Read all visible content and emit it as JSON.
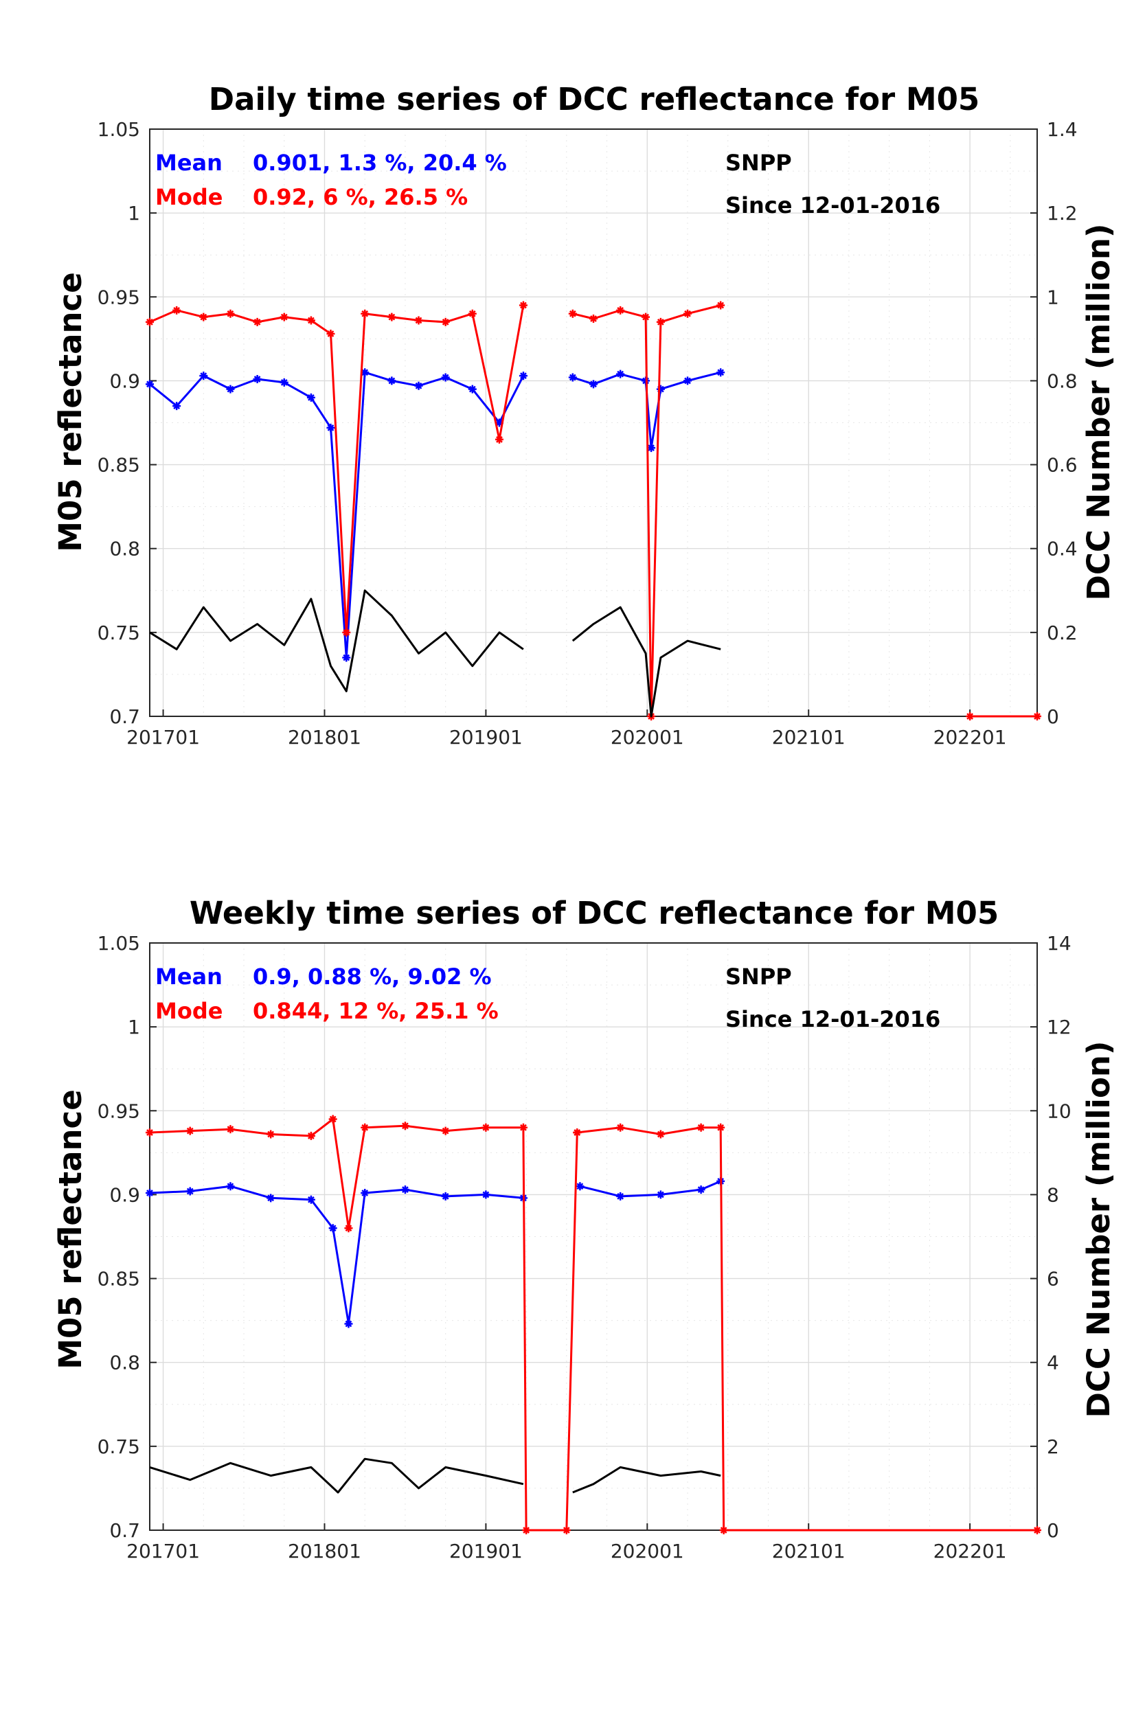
{
  "chart_data": [
    {
      "type": "line",
      "title": "Daily time series of DCC reflectance for M05",
      "ylabel": "M05 reflectance",
      "ylabel_right": "DCC Number (million)",
      "ylim": [
        0.7,
        1.05
      ],
      "ylim_right": [
        0,
        1.4
      ],
      "yticks": [
        "1.05",
        "1",
        "0.95",
        "0.9",
        "0.85",
        "0.8",
        "0.75",
        "0.7"
      ],
      "yticks_right": [
        "1.4",
        "1.2",
        "1",
        "0.8",
        "0.6",
        "0.4",
        "0.2",
        "0"
      ],
      "xticks": [
        "201701",
        "201801",
        "201901",
        "202001",
        "202101",
        "202201"
      ],
      "grid": true,
      "legend": {
        "mean_label": "Mean",
        "mean_stats": "0.901, 1.3 %, 20.4 %",
        "mode_label": "Mode",
        "mode_stats": "0.92, 6 %, 26.5 %",
        "satellite": "SNPP",
        "since": "Since 12-01-2016"
      },
      "colors": {
        "mean": "#0000ff",
        "mode": "#ff0000",
        "count": "#000000"
      },
      "series": [
        {
          "name": "Mean",
          "axis": "left",
          "marker": "star",
          "segments": [
            {
              "x": [
                "2016-12-01",
                "2017-02-01",
                "2017-04-01",
                "2017-06-01",
                "2017-08-01",
                "2017-10-01",
                "2017-12-01",
                "2018-01-15",
                "2018-02-20",
                "2018-04-01",
                "2018-06-01",
                "2018-08-01",
                "2018-10-01",
                "2018-12-01",
                "2019-02-01",
                "2019-03-25"
              ],
              "y": [
                0.898,
                0.885,
                0.903,
                0.895,
                0.901,
                0.899,
                0.89,
                0.872,
                0.735,
                0.905,
                0.9,
                0.897,
                0.902,
                0.895,
                0.875,
                0.903
              ]
            },
            {
              "x": [
                "2019-07-15",
                "2019-09-01",
                "2019-11-01",
                "2019-12-28",
                "2020-01-10",
                "2020-02-01",
                "2020-04-01",
                "2020-06-15"
              ],
              "y": [
                0.902,
                0.898,
                0.904,
                0.9,
                0.86,
                0.895,
                0.9,
                0.905
              ]
            }
          ]
        },
        {
          "name": "Mode",
          "axis": "left",
          "marker": "star",
          "segments": [
            {
              "x": [
                "2016-12-01",
                "2017-02-01",
                "2017-04-01",
                "2017-06-01",
                "2017-08-01",
                "2017-10-01",
                "2017-12-01",
                "2018-01-15",
                "2018-02-20",
                "2018-04-01",
                "2018-06-01",
                "2018-08-01",
                "2018-10-01",
                "2018-12-01",
                "2019-02-01",
                "2019-03-25"
              ],
              "y": [
                0.935,
                0.942,
                0.938,
                0.94,
                0.935,
                0.938,
                0.936,
                0.928,
                0.75,
                0.94,
                0.938,
                0.936,
                0.935,
                0.94,
                0.865,
                0.945
              ]
            },
            {
              "x": [
                "2019-07-15",
                "2019-09-01",
                "2019-11-01",
                "2019-12-28",
                "2020-01-10",
                "2020-02-01",
                "2020-04-01",
                "2020-06-15"
              ],
              "y": [
                0.94,
                0.937,
                0.942,
                0.938,
                0.7,
                0.935,
                0.94,
                0.945
              ]
            },
            {
              "x": [
                "2022-01-01",
                "2022-06-01"
              ],
              "y": [
                0.7,
                0.7
              ]
            }
          ]
        },
        {
          "name": "DCC Number",
          "axis": "right",
          "segments": [
            {
              "x": [
                "2016-12-01",
                "2017-02-01",
                "2017-04-01",
                "2017-06-01",
                "2017-08-01",
                "2017-10-01",
                "2017-12-01",
                "2018-01-15",
                "2018-02-20",
                "2018-04-01",
                "2018-06-01",
                "2018-08-01",
                "2018-10-01",
                "2018-12-01",
                "2019-02-01",
                "2019-03-25"
              ],
              "y": [
                0.2,
                0.16,
                0.26,
                0.18,
                0.22,
                0.17,
                0.28,
                0.12,
                0.06,
                0.3,
                0.24,
                0.15,
                0.2,
                0.12,
                0.2,
                0.16
              ]
            },
            {
              "x": [
                "2019-07-15",
                "2019-09-01",
                "2019-11-01",
                "2019-12-28",
                "2020-01-10",
                "2020-02-01",
                "2020-04-01",
                "2020-06-15"
              ],
              "y": [
                0.18,
                0.22,
                0.26,
                0.15,
                0.0,
                0.14,
                0.18,
                0.16
              ]
            }
          ]
        }
      ]
    },
    {
      "type": "line",
      "title": "Weekly time series of DCC reflectance for M05",
      "ylabel": "M05 reflectance",
      "ylabel_right": "DCC Number (million)",
      "ylim": [
        0.7,
        1.05
      ],
      "ylim_right": [
        0,
        14
      ],
      "yticks": [
        "1.05",
        "1",
        "0.95",
        "0.9",
        "0.85",
        "0.8",
        "0.75",
        "0.7"
      ],
      "yticks_right": [
        "14",
        "12",
        "10",
        "8",
        "6",
        "4",
        "2",
        "0"
      ],
      "xticks": [
        "201701",
        "201801",
        "201901",
        "202001",
        "202101",
        "202201"
      ],
      "grid": true,
      "legend": {
        "mean_label": "Mean",
        "mean_stats": "0.9, 0.88 %, 9.02 %",
        "mode_label": "Mode",
        "mode_stats": "0.844, 12 %, 25.1 %",
        "satellite": "SNPP",
        "since": "Since 12-01-2016"
      },
      "colors": {
        "mean": "#0000ff",
        "mode": "#ff0000",
        "count": "#000000"
      },
      "series": [
        {
          "name": "Mean",
          "axis": "left",
          "marker": "star",
          "segments": [
            {
              "x": [
                "2016-12-01",
                "2017-03-01",
                "2017-06-01",
                "2017-09-01",
                "2017-12-01",
                "2018-01-20",
                "2018-02-25",
                "2018-04-01",
                "2018-07-01",
                "2018-10-01",
                "2019-01-01",
                "2019-03-25"
              ],
              "y": [
                0.901,
                0.902,
                0.905,
                0.898,
                0.897,
                0.88,
                0.823,
                0.901,
                0.903,
                0.899,
                0.9,
                0.898
              ]
            },
            {
              "x": [
                "2019-08-01",
                "2019-11-01",
                "2020-02-01",
                "2020-05-01",
                "2020-06-15"
              ],
              "y": [
                0.905,
                0.899,
                0.9,
                0.903,
                0.908
              ]
            }
          ]
        },
        {
          "name": "Mode",
          "axis": "left",
          "marker": "star",
          "segments": [
            {
              "x": [
                "2016-12-01",
                "2017-03-01",
                "2017-06-01",
                "2017-09-01",
                "2017-12-01",
                "2018-01-20",
                "2018-02-25",
                "2018-04-01",
                "2018-07-01",
                "2018-10-01",
                "2019-01-01",
                "2019-03-25",
                "2019-04-01",
                "2019-07-01",
                "2019-07-25"
              ],
              "y": [
                0.937,
                0.938,
                0.939,
                0.936,
                0.935,
                0.945,
                0.88,
                0.94,
                0.941,
                0.938,
                0.94,
                0.94,
                0.7,
                0.7,
                0.937
              ]
            },
            {
              "x": [
                "2019-07-25",
                "2019-11-01",
                "2020-02-01",
                "2020-05-01",
                "2020-06-15",
                "2020-06-22",
                "2022-06-01"
              ],
              "y": [
                0.937,
                0.94,
                0.936,
                0.94,
                0.94,
                0.7,
                0.7
              ]
            }
          ]
        },
        {
          "name": "DCC Number",
          "axis": "right",
          "segments": [
            {
              "x": [
                "2016-12-01",
                "2017-03-01",
                "2017-06-01",
                "2017-09-01",
                "2017-12-01",
                "2018-02-01",
                "2018-04-01",
                "2018-06-01",
                "2018-08-01",
                "2018-10-01",
                "2019-01-01",
                "2019-03-25"
              ],
              "y": [
                1.5,
                1.2,
                1.6,
                1.3,
                1.5,
                0.9,
                1.7,
                1.6,
                1.0,
                1.5,
                1.3,
                1.1
              ]
            },
            {
              "x": [
                "2019-07-15",
                "2019-09-01",
                "2019-11-01",
                "2020-02-01",
                "2020-05-01",
                "2020-06-15"
              ],
              "y": [
                0.9,
                1.1,
                1.5,
                1.3,
                1.4,
                1.3
              ]
            }
          ]
        }
      ]
    }
  ]
}
